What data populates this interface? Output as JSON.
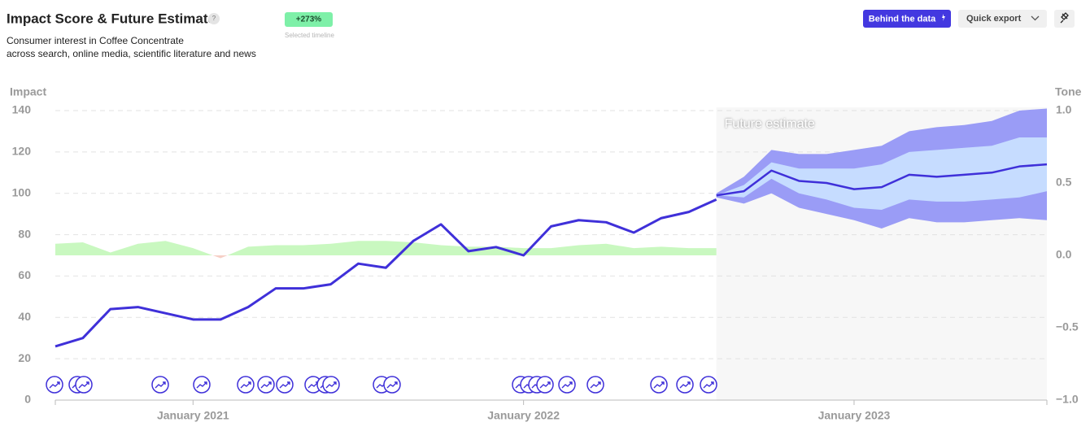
{
  "header": {
    "title": "Impact Score & Future Estimate",
    "help": "?",
    "change": "+273%",
    "change_note": "Selected timeline",
    "subtitle": [
      "Consumer interest in Coffee Concentrate",
      "across search, online media, scientific literature and news"
    ],
    "buttons": [
      "Behind the data",
      "Quick export"
    ]
  },
  "chart_data": {
    "type": "line",
    "y_label": "Impact",
    "y2_label": "Tone",
    "xlim": [
      "2020-08",
      "2023-08"
    ],
    "xticks": [
      {
        "value": "2021-01",
        "label": "January 2021"
      },
      {
        "value": "2022-01",
        "label": "January 2022"
      },
      {
        "value": "2023-01",
        "label": "January 2023"
      }
    ],
    "ylim": [
      0,
      140
    ],
    "yticks": [
      0,
      20,
      40,
      60,
      80,
      100,
      120,
      140
    ],
    "y2lim": [
      -1,
      1
    ],
    "y2ticks": [
      {
        "value": -1,
        "label": "−1.0"
      },
      {
        "value": -0.5,
        "label": "−0.5"
      },
      {
        "value": 0,
        "label": "0.0"
      },
      0.5,
      {
        "value": 1,
        "label": "1.0"
      }
    ],
    "grid": true,
    "x": [
      "2020-08",
      "2020-09",
      "2020-10",
      "2020-11",
      "2020-12",
      "2021-01",
      "2021-02",
      "2021-03",
      "2021-04",
      "2021-05",
      "2021-06",
      "2021-07",
      "2021-08",
      "2021-09",
      "2021-10",
      "2021-11",
      "2021-12",
      "2022-01",
      "2022-02",
      "2022-03",
      "2022-04",
      "2022-05",
      "2022-06",
      "2022-07",
      "2022-08"
    ],
    "series": [
      {
        "color": "#3f30d9",
        "values": [
          26,
          30,
          44,
          45,
          42,
          39,
          39,
          45,
          54,
          54,
          56,
          66,
          64,
          77,
          85,
          72,
          74,
          70,
          84,
          87,
          86,
          81,
          88,
          91,
          97
        ]
      },
      {
        "axis": "y2",
        "color": "#c9f8c0",
        "negative_color": "#f6cfc6",
        "values": [
          0.08,
          0.09,
          0.02,
          0.08,
          0.1,
          0.05,
          -0.02,
          0.06,
          0.07,
          0.07,
          0.08,
          0.1,
          0.1,
          0.09,
          0.07,
          0.06,
          0.06,
          0.05,
          0.05,
          0.07,
          0.08,
          0.05,
          0.06,
          0.05,
          0.05
        ]
      }
    ],
    "forecast": {
      "annotation": "Future estimate",
      "shade_color": "#f7f7f7",
      "line_color": "#3f30d9",
      "inner_color": "#c6dcff",
      "outer_color": "#9a9cf6",
      "x": [
        "2022-08",
        "2022-09",
        "2022-10",
        "2022-11",
        "2022-12",
        "2023-01",
        "2023-02",
        "2023-03",
        "2023-04",
        "2023-05",
        "2023-06",
        "2023-07",
        "2023-08"
      ],
      "values": [
        99,
        101,
        111,
        106,
        105,
        102,
        103,
        109,
        108,
        109,
        110,
        113,
        114
      ],
      "inner_lower": [
        99,
        98,
        107,
        100,
        97,
        93,
        92,
        97,
        96,
        96,
        97,
        98,
        101
      ],
      "inner_upper": [
        99,
        104,
        115,
        112,
        112,
        112,
        114,
        120,
        121,
        122,
        123,
        127,
        127
      ],
      "outer_lower": [
        98,
        95,
        100,
        93,
        90,
        87,
        83,
        88,
        86,
        86,
        87,
        88,
        87
      ],
      "outer_upper": [
        100,
        108,
        121,
        119,
        119,
        121,
        123,
        130,
        132,
        133,
        135,
        140,
        141
      ]
    }
  }
}
